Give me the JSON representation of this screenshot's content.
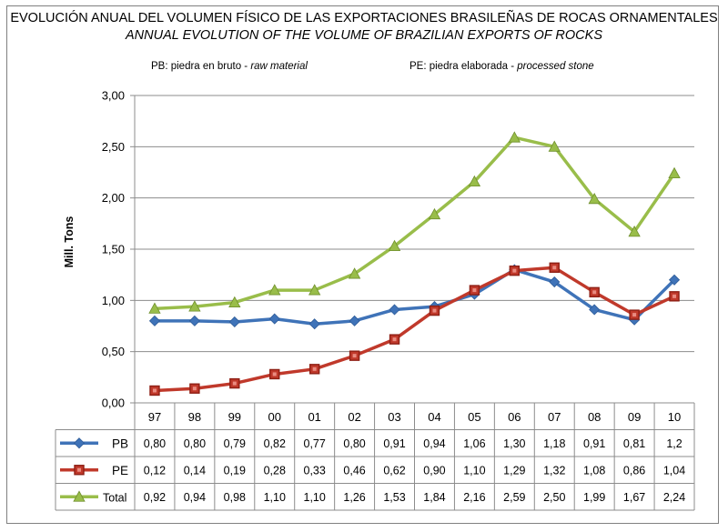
{
  "title": "EVOLUCIÓN ANUAL DEL VOLUMEN FÍSICO DE LAS EXPORTACIONES BRASILEÑAS DE ROCAS ORNAMENTALES",
  "subtitle": "ANNUAL EVOLUTION OF THE VOLUME OF BRAZILIAN EXPORTS OF ROCKS",
  "notes": {
    "pb_label": "PB: piedra en bruto - ",
    "pb_label_en": "raw material",
    "pe_label": "PE: piedra elaborada - ",
    "pe_label_en": "processed stone"
  },
  "colors": {
    "PB": "#3f73b8",
    "PE": "#c0392b",
    "Total": "#99bd4a",
    "grid": "#8c8c8c"
  },
  "chart_data": {
    "type": "line",
    "ylabel": "Mill. Tons",
    "ylim": [
      0,
      3
    ],
    "yticks": [
      "0,00",
      "0,50",
      "1,00",
      "1,50",
      "2,00",
      "2,50",
      "3,00"
    ],
    "grid": true,
    "legend": "data-table",
    "categories": [
      "97",
      "98",
      "99",
      "00",
      "01",
      "02",
      "03",
      "04",
      "05",
      "06",
      "07",
      "08",
      "09",
      "10"
    ],
    "series": [
      {
        "name": "PB",
        "marker": "diamond",
        "values": [
          0.8,
          0.8,
          0.79,
          0.82,
          0.77,
          0.8,
          0.91,
          0.94,
          1.06,
          1.3,
          1.18,
          0.91,
          0.81,
          1.2
        ],
        "labels": [
          "0,80",
          "0,80",
          "0,79",
          "0,82",
          "0,77",
          "0,80",
          "0,91",
          "0,94",
          "1,06",
          "1,30",
          "1,18",
          "0,91",
          "0,81",
          "1,2"
        ]
      },
      {
        "name": "PE",
        "marker": "square",
        "values": [
          0.12,
          0.14,
          0.19,
          0.28,
          0.33,
          0.46,
          0.62,
          0.9,
          1.1,
          1.29,
          1.32,
          1.08,
          0.86,
          1.04
        ],
        "labels": [
          "0,12",
          "0,14",
          "0,19",
          "0,28",
          "0,33",
          "0,46",
          "0,62",
          "0,90",
          "1,10",
          "1,29",
          "1,32",
          "1,08",
          "0,86",
          "1,04"
        ]
      },
      {
        "name": "Total",
        "marker": "triangle",
        "values": [
          0.92,
          0.94,
          0.98,
          1.1,
          1.1,
          1.26,
          1.53,
          1.84,
          2.16,
          2.59,
          2.5,
          1.99,
          1.67,
          2.24
        ],
        "labels": [
          "0,92",
          "0,94",
          "0,98",
          "1,10",
          "1,10",
          "1,26",
          "1,53",
          "1,84",
          "2,16",
          "2,59",
          "2,50",
          "1,99",
          "1,67",
          "2,24"
        ]
      }
    ]
  }
}
